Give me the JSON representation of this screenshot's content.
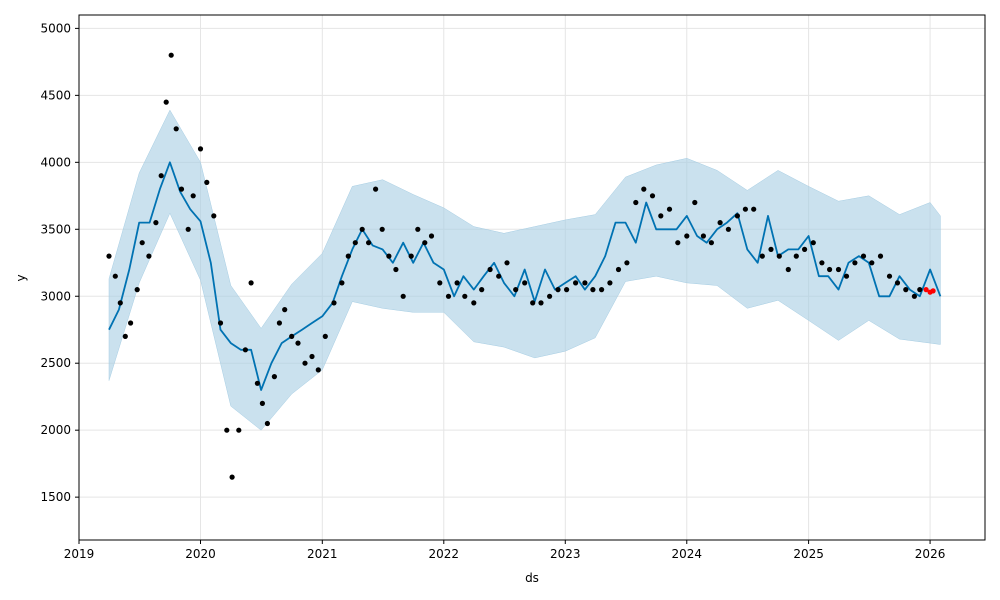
{
  "chart_data": {
    "type": "line",
    "title": "",
    "xlabel": "ds",
    "ylabel": "y",
    "xlim": [
      "2019-01-01",
      "2026-06-15"
    ],
    "ylim": [
      1180,
      5100
    ],
    "x_ticks": [
      "2019",
      "2020",
      "2021",
      "2022",
      "2023",
      "2024",
      "2025",
      "2026"
    ],
    "y_ticks": [
      1500,
      2000,
      2500,
      3000,
      3500,
      4000,
      4500,
      5000
    ],
    "grid": true,
    "legend": "none",
    "colors": {
      "forecast_line": "#0072b2",
      "uncertainty_band": "#a6cde3",
      "observations": "#000000",
      "recent_observations": "#ff0000"
    },
    "series": [
      {
        "type": "line",
        "x": [
          "2019-04-01",
          "2019-05-01",
          "2019-06-01",
          "2019-07-01",
          "2019-08-01",
          "2019-09-01",
          "2019-10-01",
          "2019-11-01",
          "2019-12-01",
          "2020-01-01",
          "2020-02-01",
          "2020-03-01",
          "2020-04-01",
          "2020-05-01",
          "2020-06-01",
          "2020-07-01",
          "2020-08-01",
          "2020-09-01",
          "2020-10-01",
          "2020-11-01",
          "2020-12-01",
          "2021-01-01",
          "2021-02-01",
          "2021-03-01",
          "2021-04-01",
          "2021-05-01",
          "2021-06-01",
          "2021-07-01",
          "2021-08-01",
          "2021-09-01",
          "2021-10-01",
          "2021-11-01",
          "2021-12-01",
          "2022-01-01",
          "2022-02-01",
          "2022-03-01",
          "2022-04-01",
          "2022-05-01",
          "2022-06-01",
          "2022-07-01",
          "2022-08-01",
          "2022-09-01",
          "2022-10-01",
          "2022-11-01",
          "2022-12-01",
          "2023-01-01",
          "2023-02-01",
          "2023-03-01",
          "2023-04-01",
          "2023-05-01",
          "2023-06-01",
          "2023-07-01",
          "2023-08-01",
          "2023-09-01",
          "2023-10-01",
          "2023-11-01",
          "2023-12-01",
          "2024-01-01",
          "2024-02-01",
          "2024-03-01",
          "2024-04-01",
          "2024-05-01",
          "2024-06-01",
          "2024-07-01",
          "2024-08-01",
          "2024-09-01",
          "2024-10-01",
          "2024-11-01",
          "2024-12-01",
          "2025-01-01",
          "2025-02-01",
          "2025-03-01",
          "2025-04-01",
          "2025-05-01",
          "2025-06-01",
          "2025-07-01",
          "2025-08-01",
          "2025-09-01",
          "2025-10-01",
          "2025-11-01",
          "2025-12-01",
          "2026-01-01",
          "2026-02-01"
        ],
        "y": [
          2750,
          2900,
          3200,
          3550,
          3550,
          3800,
          4000,
          3780,
          3650,
          3560,
          3250,
          2750,
          2650,
          2600,
          2600,
          2300,
          2500,
          2650,
          2700,
          2750,
          2800,
          2850,
          2950,
          3150,
          3350,
          3500,
          3380,
          3350,
          3250,
          3400,
          3250,
          3400,
          3250,
          3200,
          3000,
          3150,
          3050,
          3150,
          3250,
          3100,
          3000,
          3200,
          2960,
          3200,
          3050,
          3100,
          3150,
          3050,
          3150,
          3300,
          3550,
          3550,
          3400,
          3700,
          3500,
          3500,
          3500,
          3600,
          3450,
          3400,
          3500,
          3550,
          3620,
          3350,
          3250,
          3600,
          3300,
          3350,
          3350,
          3450,
          3150,
          3150,
          3050,
          3250,
          3300,
          3250,
          3000,
          3000,
          3150,
          3050,
          3000,
          3200,
          3000
        ]
      },
      {
        "type": "band",
        "x": [
          "2019-04-01",
          "2019-07-01",
          "2019-10-01",
          "2020-01-01",
          "2020-04-01",
          "2020-07-01",
          "2020-10-01",
          "2021-01-01",
          "2021-04-01",
          "2021-07-01",
          "2021-10-01",
          "2022-01-01",
          "2022-04-01",
          "2022-07-01",
          "2022-10-01",
          "2023-01-01",
          "2023-04-01",
          "2023-07-01",
          "2023-10-01",
          "2024-01-01",
          "2024-04-01",
          "2024-07-01",
          "2024-10-01",
          "2025-01-01",
          "2025-04-01",
          "2025-07-01",
          "2025-10-01",
          "2026-01-01",
          "2026-02-01"
        ],
        "lower": [
          2370,
          3100,
          3620,
          3120,
          2180,
          2000,
          2270,
          2450,
          2960,
          2910,
          2880,
          2880,
          2660,
          2620,
          2540,
          2590,
          2690,
          3110,
          3150,
          3100,
          3080,
          2910,
          2970,
          2820,
          2670,
          2820,
          2680,
          2650,
          2640
        ],
        "upper": [
          3130,
          3920,
          4390,
          4000,
          3080,
          2760,
          3090,
          3320,
          3820,
          3870,
          3760,
          3660,
          3520,
          3470,
          3520,
          3570,
          3610,
          3890,
          3980,
          4030,
          3940,
          3790,
          3940,
          3820,
          3710,
          3750,
          3610,
          3700,
          3600
        ]
      },
      {
        "type": "scatter",
        "name": "observations",
        "x": [
          "2019-04-01",
          "2019-04-20",
          "2019-05-05",
          "2019-05-20",
          "2019-06-05",
          "2019-06-25",
          "2019-07-10",
          "2019-07-30",
          "2019-08-20",
          "2019-09-05",
          "2019-09-20",
          "2019-10-05",
          "2019-10-20",
          "2019-11-05",
          "2019-11-25",
          "2019-12-10",
          "2020-01-01",
          "2020-01-20",
          "2020-02-10",
          "2020-03-01",
          "2020-03-20",
          "2020-04-05",
          "2020-04-25",
          "2020-05-15",
          "2020-06-01",
          "2020-06-20",
          "2020-07-05",
          "2020-07-20",
          "2020-08-10",
          "2020-08-25",
          "2020-09-10",
          "2020-10-01",
          "2020-10-20",
          "2020-11-10",
          "2020-12-01",
          "2020-12-20",
          "2021-01-10",
          "2021-02-05",
          "2021-03-01",
          "2021-03-20",
          "2021-04-10",
          "2021-05-01",
          "2021-05-20",
          "2021-06-10",
          "2021-06-30",
          "2021-07-20",
          "2021-08-10",
          "2021-09-01",
          "2021-09-25",
          "2021-10-15",
          "2021-11-05",
          "2021-11-25",
          "2021-12-20",
          "2022-01-15",
          "2022-02-10",
          "2022-03-05",
          "2022-04-01",
          "2022-04-25",
          "2022-05-20",
          "2022-06-15",
          "2022-07-10",
          "2022-08-05",
          "2022-09-01",
          "2022-09-25",
          "2022-10-20",
          "2022-11-15",
          "2022-12-10",
          "2023-01-05",
          "2023-02-01",
          "2023-03-01",
          "2023-03-25",
          "2023-04-20",
          "2023-05-15",
          "2023-06-10",
          "2023-07-05",
          "2023-08-01",
          "2023-08-25",
          "2023-09-20",
          "2023-10-15",
          "2023-11-10",
          "2023-12-05",
          "2024-01-01",
          "2024-01-25",
          "2024-02-20",
          "2024-03-15",
          "2024-04-10",
          "2024-05-05",
          "2024-06-01",
          "2024-06-25",
          "2024-07-20",
          "2024-08-15",
          "2024-09-10",
          "2024-10-05",
          "2024-11-01",
          "2024-11-25",
          "2024-12-20",
          "2025-01-15",
          "2025-02-10",
          "2025-03-05",
          "2025-04-01",
          "2025-04-25",
          "2025-05-20",
          "2025-06-15",
          "2025-07-10",
          "2025-08-05",
          "2025-09-01",
          "2025-09-25",
          "2025-10-20",
          "2025-11-15",
          "2025-12-01"
        ],
        "y": [
          3300,
          3150,
          2950,
          2700,
          2800,
          3050,
          3400,
          3300,
          3550,
          3900,
          4450,
          4800,
          4250,
          3800,
          3500,
          3750,
          4100,
          3850,
          3600,
          2800,
          2000,
          1650,
          2000,
          2600,
          3100,
          2350,
          2200,
          2050,
          2400,
          2800,
          2900,
          2700,
          2650,
          2500,
          2550,
          2450,
          2700,
          2950,
          3100,
          3300,
          3400,
          3500,
          3400,
          3800,
          3500,
          3300,
          3200,
          3000,
          3300,
          3500,
          3400,
          3450,
          3100,
          3000,
          3100,
          3000,
          2950,
          3050,
          3200,
          3150,
          3250,
          3050,
          3100,
          2950,
          2950,
          3000,
          3050,
          3050,
          3100,
          3100,
          3050,
          3050,
          3100,
          3200,
          3250,
          3700,
          3800,
          3750,
          3600,
          3650,
          3400,
          3450,
          3700,
          3450,
          3400,
          3550,
          3500,
          3600,
          3650,
          3650,
          3300,
          3350,
          3300,
          3200,
          3300,
          3350,
          3400,
          3250,
          3200,
          3200,
          3150,
          3250,
          3300,
          3250,
          3300,
          3150,
          3100,
          3050,
          3000,
          3050
        ]
      },
      {
        "type": "scatter",
        "name": "recent_observations",
        "x": [
          "2025-12-20",
          "2026-01-01",
          "2026-01-10"
        ],
        "y": [
          3050,
          3030,
          3040
        ]
      }
    ]
  }
}
